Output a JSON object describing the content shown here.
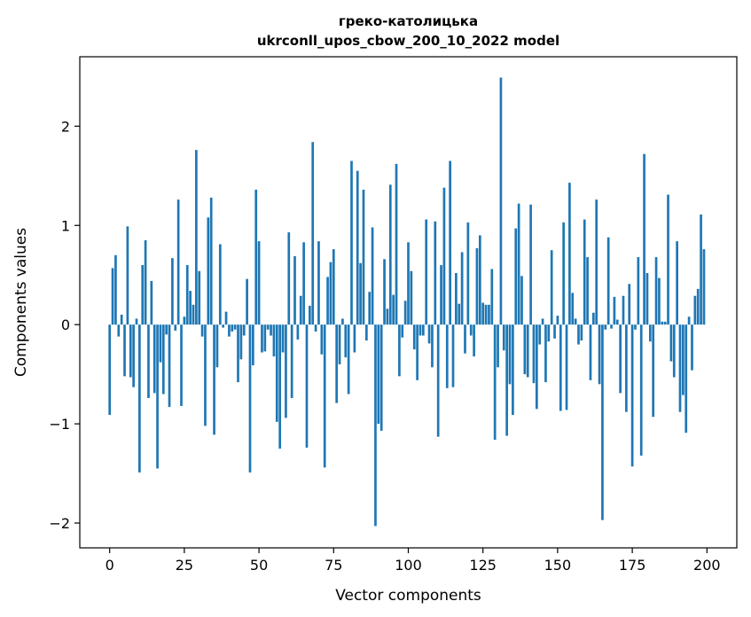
{
  "chart_data": {
    "type": "bar",
    "title_line1": "греко-католицька",
    "title_line2": "ukrconll_upos_cbow_200_10_2022 model",
    "xlabel": "Vector components",
    "ylabel": "Components values",
    "xlim": [
      -10,
      210
    ],
    "ylim": [
      -2.25,
      2.7
    ],
    "xticks": [
      0,
      25,
      50,
      75,
      100,
      125,
      150,
      175,
      200
    ],
    "yticks": [
      -2,
      -1,
      0,
      1,
      2
    ],
    "ytick_labels": [
      "−2",
      "−1",
      "0",
      "1",
      "2"
    ],
    "grid": false,
    "bar_color": "#1f77b4",
    "values": [
      -0.91,
      0.57,
      0.7,
      -0.12,
      0.1,
      -0.52,
      0.99,
      -0.53,
      -0.63,
      0.06,
      -1.49,
      0.6,
      0.85,
      -0.74,
      0.44,
      -0.69,
      -1.45,
      -0.38,
      -0.7,
      -0.1,
      -0.83,
      0.67,
      -0.06,
      1.26,
      -0.82,
      0.08,
      0.6,
      0.34,
      0.2,
      1.76,
      0.54,
      -0.12,
      -1.02,
      1.08,
      1.28,
      -1.11,
      -0.43,
      0.81,
      -0.03,
      0.13,
      -0.12,
      -0.07,
      -0.05,
      -0.58,
      -0.35,
      -0.11,
      0.46,
      -1.49,
      -0.41,
      1.36,
      0.84,
      -0.28,
      -0.27,
      -0.05,
      -0.11,
      -0.32,
      -0.98,
      -1.25,
      -0.28,
      -0.94,
      0.93,
      -0.74,
      0.69,
      -0.15,
      0.29,
      0.83,
      -1.24,
      0.19,
      1.84,
      -0.07,
      0.84,
      -0.3,
      -1.44,
      0.48,
      0.63,
      0.76,
      -0.79,
      -0.4,
      0.06,
      -0.33,
      -0.7,
      1.65,
      -0.28,
      1.55,
      0.62,
      1.36,
      -0.16,
      0.33,
      0.98,
      -2.03,
      -1.0,
      -1.07,
      0.66,
      0.16,
      1.41,
      0.3,
      1.62,
      -0.52,
      -0.13,
      0.24,
      0.83,
      0.54,
      -0.25,
      -0.56,
      -0.11,
      -0.11,
      1.06,
      -0.19,
      -0.43,
      1.04,
      -1.13,
      0.6,
      1.38,
      -0.64,
      1.65,
      -0.63,
      0.52,
      0.21,
      0.73,
      -0.29,
      1.03,
      -0.11,
      -0.32,
      0.77,
      0.9,
      0.22,
      0.2,
      0.2,
      0.56,
      -1.16,
      -0.43,
      2.49,
      -0.26,
      -1.12,
      -0.6,
      -0.91,
      0.97,
      1.22,
      0.49,
      -0.5,
      -0.53,
      1.21,
      -0.59,
      -0.85,
      -0.2,
      0.06,
      -0.58,
      -0.17,
      0.75,
      -0.14,
      0.09,
      -0.87,
      1.03,
      -0.86,
      1.43,
      0.32,
      0.06,
      -0.2,
      -0.16,
      1.06,
      0.68,
      -0.56,
      0.12,
      1.26,
      -0.6,
      -1.97,
      -0.05,
      0.88,
      -0.04,
      0.28,
      0.05,
      -0.69,
      0.29,
      -0.88,
      0.41,
      -1.43,
      -0.05,
      0.68,
      -1.32,
      1.72,
      0.52,
      -0.17,
      -0.93,
      0.68,
      0.47,
      0.03,
      0.03,
      1.31,
      -0.37,
      -0.53,
      0.84,
      -0.88,
      -0.71,
      -1.09,
      0.08,
      -0.46,
      0.29,
      0.36,
      1.11,
      0.76
    ]
  }
}
